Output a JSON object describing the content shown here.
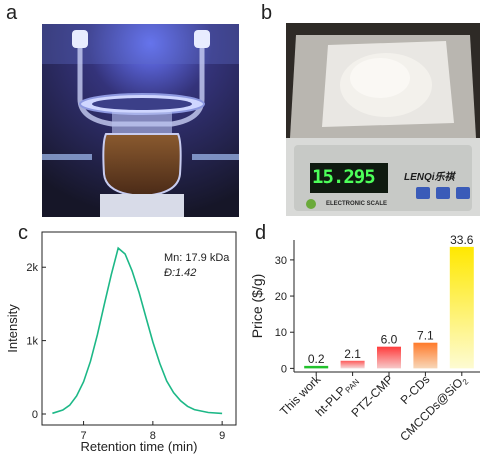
{
  "panels": {
    "a": "a",
    "b": "b",
    "c": "c",
    "d": "d"
  },
  "photo_b": {
    "display_value": "15.295",
    "brand_label": "LENQi乐祺",
    "scale_label": "ELECTRONIC SCALE"
  },
  "chart_data": [
    {
      "type": "line",
      "xlabel": "Retention time (min)",
      "ylabel": "Intensity",
      "xticks": [
        "7",
        "8",
        "9"
      ],
      "yticks": [
        "0",
        "1k",
        "2k"
      ],
      "xlim": [
        6.4,
        9.2
      ],
      "ylim": [
        -150,
        2480
      ],
      "annotations": [
        "Mn: 17.9 kDa",
        "Đ:1.42"
      ],
      "series": [
        {
          "color": "#1db887",
          "x": [
            6.55,
            6.7,
            6.8,
            6.9,
            7.0,
            7.1,
            7.2,
            7.3,
            7.4,
            7.5,
            7.6,
            7.7,
            7.8,
            7.9,
            8.0,
            8.1,
            8.2,
            8.3,
            8.4,
            8.5,
            8.6,
            8.8,
            9.0
          ],
          "y": [
            10,
            55,
            120,
            245,
            440,
            720,
            1080,
            1500,
            1900,
            2260,
            2180,
            1950,
            1660,
            1320,
            980,
            690,
            450,
            290,
            180,
            105,
            60,
            20,
            8
          ]
        }
      ]
    },
    {
      "type": "bar",
      "ylabel": "Price ($/g)",
      "ylim": [
        -1,
        35.5
      ],
      "yticks": [
        "0",
        "10",
        "20",
        "30"
      ],
      "categories": [
        {
          "main": "This work",
          "sub": ""
        },
        {
          "main": "ht-PLP",
          "sub": "PAN"
        },
        {
          "main": "PTZ-CMP",
          "sub": ""
        },
        {
          "main": "P-CDs",
          "sub": ""
        },
        {
          "main": "CMCCDs@SiO",
          "sub": "2"
        }
      ],
      "values": [
        0.2,
        2.1,
        6.0,
        7.1,
        33.6
      ],
      "value_labels": [
        "0.2",
        "2.1",
        "6.0",
        "7.1",
        "33.6"
      ],
      "bar_colors": [
        [
          "#22c22c",
          "#22c22c"
        ],
        [
          "#ff5a5a",
          "#f5dada"
        ],
        [
          "#ff3c3c",
          "#f7c9c9"
        ],
        [
          "#ff7a2a",
          "#f8d7b8"
        ],
        [
          "#ffe800",
          "#fdfbd2"
        ]
      ]
    }
  ]
}
